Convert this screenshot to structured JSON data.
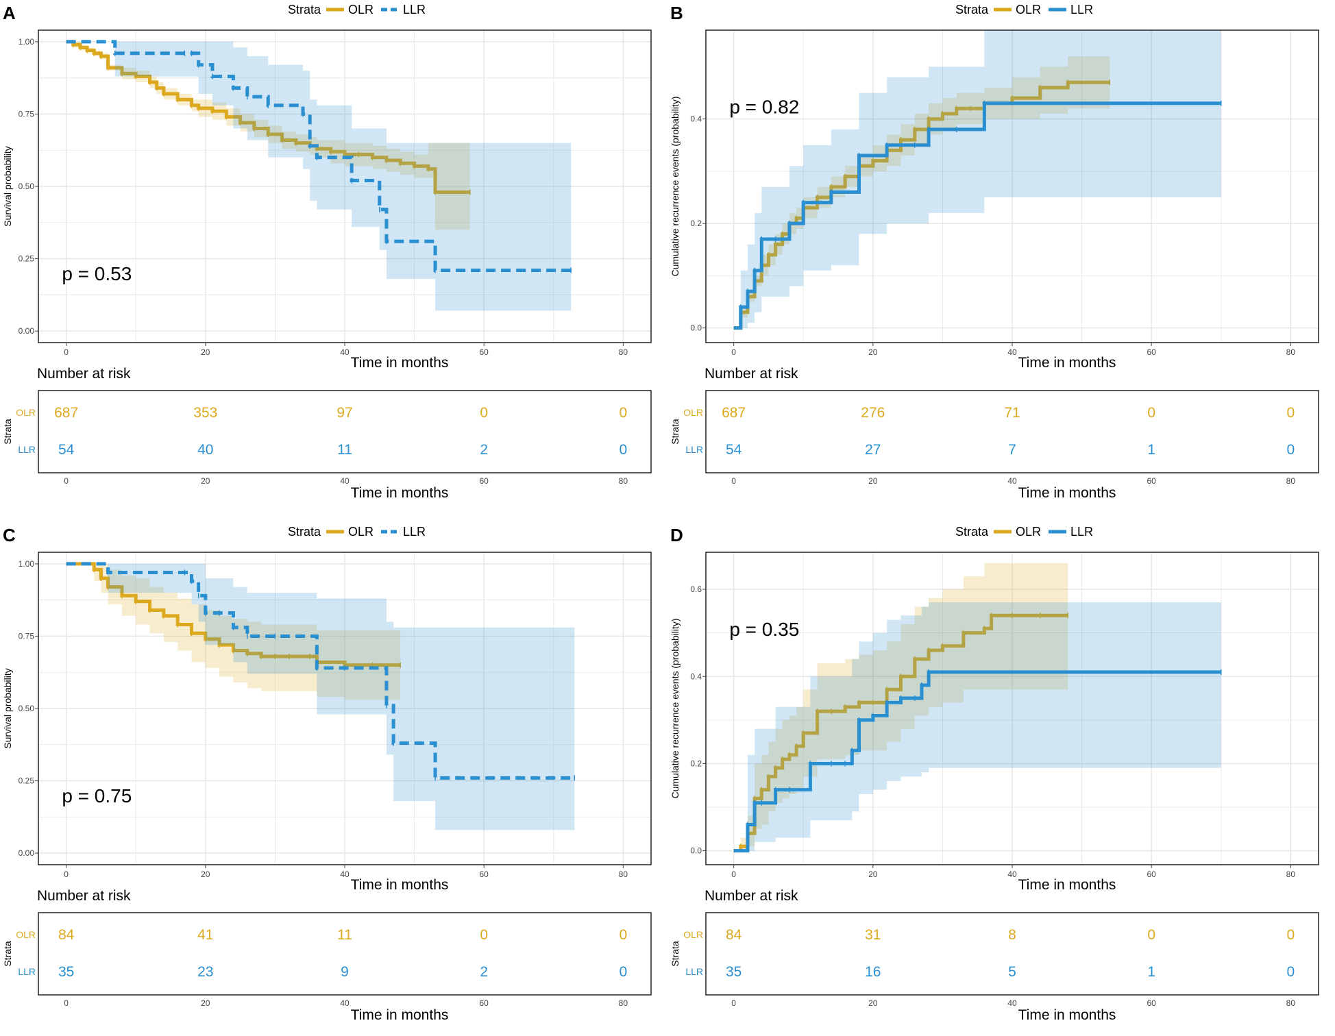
{
  "figure": {
    "legend_title": "Strata",
    "risk_table_title": "Number at risk",
    "risk_table_ylabel": "Strata",
    "colors": {
      "OLR": "#dca91e",
      "LLR": "#2a8fd0",
      "grid": "#e6e6e6",
      "text": "#000000",
      "tick": "#444444"
    }
  },
  "chart_data": [
    {
      "panel": "A",
      "type": "line",
      "kind": "survival",
      "line_style": {
        "OLR": "solid",
        "LLR": "dashed"
      },
      "ylabel": "Survival probability",
      "xlabel": "Time in months",
      "xlim": [
        -4,
        84
      ],
      "ylim": [
        -0.04,
        1.04
      ],
      "x_ticks": [
        "0",
        "20",
        "40",
        "60",
        "80"
      ],
      "y_ticks": [
        "0.00",
        "0.25",
        "0.50",
        "0.75",
        "1.00"
      ],
      "y_tick_values": [
        0,
        0.25,
        0.5,
        0.75,
        1.0
      ],
      "pvalue": "p = 0.53",
      "legend": [
        "OLR",
        "LLR"
      ],
      "series": [
        {
          "name": "OLR",
          "x": [
            0,
            1,
            2,
            3,
            4,
            5,
            6,
            8,
            10,
            12,
            13,
            14,
            16,
            18,
            19,
            21,
            23,
            25,
            27,
            29,
            31,
            33,
            35,
            36,
            38,
            40,
            42,
            44,
            46,
            48,
            50,
            52,
            53,
            58
          ],
          "values": [
            1.0,
            0.99,
            0.98,
            0.97,
            0.96,
            0.95,
            0.91,
            0.89,
            0.88,
            0.86,
            0.84,
            0.82,
            0.8,
            0.78,
            0.77,
            0.76,
            0.74,
            0.72,
            0.7,
            0.68,
            0.66,
            0.65,
            0.64,
            0.63,
            0.62,
            0.61,
            0.61,
            0.6,
            0.59,
            0.58,
            0.57,
            0.56,
            0.48,
            0.48
          ],
          "lower": [
            1.0,
            0.98,
            0.97,
            0.96,
            0.95,
            0.94,
            0.9,
            0.87,
            0.86,
            0.84,
            0.82,
            0.8,
            0.78,
            0.76,
            0.74,
            0.73,
            0.71,
            0.69,
            0.67,
            0.65,
            0.63,
            0.62,
            0.61,
            0.6,
            0.58,
            0.57,
            0.57,
            0.56,
            0.55,
            0.54,
            0.53,
            0.53,
            0.35,
            0.35
          ],
          "upper": [
            1.0,
            1.0,
            0.99,
            0.98,
            0.97,
            0.96,
            0.92,
            0.91,
            0.9,
            0.88,
            0.86,
            0.84,
            0.82,
            0.8,
            0.8,
            0.79,
            0.77,
            0.75,
            0.73,
            0.71,
            0.69,
            0.68,
            0.67,
            0.66,
            0.66,
            0.65,
            0.65,
            0.64,
            0.63,
            0.62,
            0.61,
            0.65,
            0.65,
            0.65
          ]
        },
        {
          "name": "LLR",
          "x": [
            0,
            7,
            17,
            18,
            19,
            21,
            24,
            26,
            29,
            34,
            35,
            36,
            41,
            45,
            46,
            53,
            72.5
          ],
          "values": [
            1.0,
            0.96,
            0.96,
            0.96,
            0.92,
            0.88,
            0.84,
            0.81,
            0.78,
            0.75,
            0.64,
            0.6,
            0.52,
            0.42,
            0.31,
            0.21,
            0.21
          ],
          "lower": [
            1.0,
            0.88,
            0.88,
            0.88,
            0.82,
            0.78,
            0.7,
            0.66,
            0.6,
            0.56,
            0.45,
            0.42,
            0.36,
            0.28,
            0.18,
            0.07,
            0.07
          ],
          "upper": [
            1.0,
            1.0,
            1.0,
            1.0,
            1.0,
            1.0,
            0.98,
            0.95,
            0.92,
            0.9,
            0.8,
            0.78,
            0.7,
            0.7,
            0.65,
            0.65,
            0.65
          ]
        }
      ],
      "risk_table": {
        "x": [
          "0",
          "20",
          "40",
          "60",
          "80"
        ],
        "OLR": [
          "687",
          "353",
          "97",
          "0",
          "0"
        ],
        "LLR": [
          "54",
          "40",
          "11",
          "2",
          "0"
        ]
      }
    },
    {
      "panel": "B",
      "type": "line",
      "kind": "cumulative",
      "line_style": {
        "OLR": "solid",
        "LLR": "solid"
      },
      "ylabel": "Cumulative recurrence events  (probability)",
      "xlabel": "Time in months",
      "xlim": [
        -4,
        84
      ],
      "ylim": [
        -0.028,
        0.57
      ],
      "x_ticks": [
        "0",
        "20",
        "40",
        "60",
        "80"
      ],
      "y_ticks": [
        "0.0",
        "0.2",
        "0.4"
      ],
      "y_tick_values": [
        0,
        0.2,
        0.4
      ],
      "pvalue": "p = 0.82",
      "legend": [
        "OLR",
        "LLR"
      ],
      "series": [
        {
          "name": "OLR",
          "x": [
            0,
            1,
            2,
            3,
            4,
            5,
            6,
            7,
            8,
            9,
            10,
            12,
            14,
            16,
            18,
            20,
            22,
            24,
            26,
            28,
            30,
            32,
            34,
            36,
            40,
            44,
            48,
            54
          ],
          "values": [
            0,
            0.03,
            0.06,
            0.09,
            0.12,
            0.14,
            0.16,
            0.18,
            0.2,
            0.21,
            0.23,
            0.25,
            0.27,
            0.29,
            0.31,
            0.32,
            0.34,
            0.36,
            0.38,
            0.4,
            0.41,
            0.42,
            0.42,
            0.43,
            0.44,
            0.46,
            0.47,
            0.47
          ],
          "lower": [
            0,
            0.02,
            0.05,
            0.08,
            0.1,
            0.12,
            0.14,
            0.16,
            0.18,
            0.19,
            0.21,
            0.23,
            0.25,
            0.27,
            0.29,
            0.3,
            0.31,
            0.33,
            0.35,
            0.37,
            0.38,
            0.39,
            0.39,
            0.4,
            0.4,
            0.41,
            0.42,
            0.42
          ],
          "upper": [
            0,
            0.04,
            0.07,
            0.1,
            0.14,
            0.16,
            0.18,
            0.2,
            0.22,
            0.23,
            0.25,
            0.27,
            0.29,
            0.31,
            0.33,
            0.35,
            0.37,
            0.39,
            0.41,
            0.43,
            0.44,
            0.45,
            0.45,
            0.46,
            0.48,
            0.5,
            0.52,
            0.52
          ]
        },
        {
          "name": "LLR",
          "x": [
            0,
            1,
            2,
            3,
            4,
            6,
            8,
            10,
            14,
            18,
            22,
            26,
            28,
            32,
            36,
            70
          ],
          "values": [
            0,
            0.04,
            0.07,
            0.11,
            0.17,
            0.17,
            0.2,
            0.24,
            0.26,
            0.33,
            0.35,
            0.35,
            0.38,
            0.38,
            0.43,
            0.43
          ],
          "lower": [
            0,
            0.0,
            0.01,
            0.03,
            0.06,
            0.06,
            0.08,
            0.11,
            0.12,
            0.18,
            0.2,
            0.2,
            0.22,
            0.22,
            0.25,
            0.25
          ],
          "upper": [
            0,
            0.11,
            0.16,
            0.22,
            0.27,
            0.27,
            0.31,
            0.35,
            0.38,
            0.45,
            0.48,
            0.48,
            0.5,
            0.5,
            0.57,
            0.57
          ]
        }
      ],
      "risk_table": {
        "x": [
          "0",
          "20",
          "40",
          "60",
          "80"
        ],
        "OLR": [
          "687",
          "276",
          "71",
          "0",
          "0"
        ],
        "LLR": [
          "54",
          "27",
          "7",
          "1",
          "0"
        ]
      }
    },
    {
      "panel": "C",
      "type": "line",
      "kind": "survival",
      "line_style": {
        "OLR": "solid",
        "LLR": "dashed"
      },
      "ylabel": "Survival probability",
      "xlabel": "Time in months",
      "xlim": [
        -4,
        84
      ],
      "ylim": [
        -0.04,
        1.04
      ],
      "x_ticks": [
        "0",
        "20",
        "40",
        "60",
        "80"
      ],
      "y_ticks": [
        "0.00",
        "0.25",
        "0.50",
        "0.75",
        "1.00"
      ],
      "y_tick_values": [
        0,
        0.25,
        0.5,
        0.75,
        1.0
      ],
      "pvalue": "p = 0.75",
      "legend": [
        "OLR",
        "LLR"
      ],
      "series": [
        {
          "name": "OLR",
          "x": [
            0,
            4,
            5,
            6,
            8,
            10,
            12,
            14,
            16,
            18,
            20,
            22,
            24,
            26,
            28,
            30,
            32,
            35,
            36,
            40,
            44,
            48
          ],
          "values": [
            1.0,
            0.98,
            0.95,
            0.92,
            0.89,
            0.87,
            0.84,
            0.82,
            0.79,
            0.76,
            0.74,
            0.72,
            0.7,
            0.69,
            0.68,
            0.68,
            0.68,
            0.68,
            0.66,
            0.65,
            0.65,
            0.65
          ],
          "lower": [
            1.0,
            0.94,
            0.9,
            0.86,
            0.82,
            0.79,
            0.76,
            0.73,
            0.7,
            0.66,
            0.64,
            0.61,
            0.59,
            0.57,
            0.56,
            0.56,
            0.56,
            0.56,
            0.54,
            0.53,
            0.53,
            0.53
          ],
          "upper": [
            1.0,
            1.0,
            1.0,
            0.98,
            0.96,
            0.95,
            0.92,
            0.9,
            0.88,
            0.86,
            0.84,
            0.82,
            0.81,
            0.8,
            0.79,
            0.79,
            0.79,
            0.79,
            0.77,
            0.77,
            0.77,
            0.77
          ]
        },
        {
          "name": "LLR",
          "x": [
            0,
            6,
            17,
            18,
            19,
            20,
            22,
            24,
            26,
            30,
            36,
            40,
            46,
            47,
            53,
            73
          ],
          "values": [
            1.0,
            0.97,
            0.97,
            0.94,
            0.89,
            0.83,
            0.83,
            0.78,
            0.75,
            0.75,
            0.64,
            0.64,
            0.51,
            0.38,
            0.26,
            0.26
          ],
          "lower": [
            1.0,
            0.9,
            0.9,
            0.86,
            0.8,
            0.72,
            0.72,
            0.66,
            0.62,
            0.62,
            0.48,
            0.48,
            0.34,
            0.18,
            0.08,
            0.08
          ],
          "upper": [
            1.0,
            1.0,
            1.0,
            1.0,
            1.0,
            0.95,
            0.95,
            0.92,
            0.9,
            0.9,
            0.88,
            0.88,
            0.8,
            0.78,
            0.78,
            0.78
          ]
        }
      ],
      "risk_table": {
        "x": [
          "0",
          "20",
          "40",
          "60",
          "80"
        ],
        "OLR": [
          "84",
          "41",
          "11",
          "0",
          "0"
        ],
        "LLR": [
          "35",
          "23",
          "9",
          "2",
          "0"
        ]
      }
    },
    {
      "panel": "D",
      "type": "line",
      "kind": "cumulative",
      "line_style": {
        "OLR": "solid",
        "LLR": "solid"
      },
      "ylabel": "Cumulative recurrence events  (probability)",
      "xlabel": "Time in months",
      "xlim": [
        -4,
        84
      ],
      "ylim": [
        -0.032,
        0.685
      ],
      "x_ticks": [
        "0",
        "20",
        "40",
        "60",
        "80"
      ],
      "y_ticks": [
        "0.0",
        "0.2",
        "0.4",
        "0.6"
      ],
      "y_tick_values": [
        0,
        0.2,
        0.4,
        0.6
      ],
      "pvalue": "p = 0.35",
      "legend": [
        "OLR",
        "LLR"
      ],
      "series": [
        {
          "name": "OLR",
          "x": [
            0,
            1,
            2,
            3,
            4,
            5,
            6,
            7,
            8,
            9,
            10,
            12,
            14,
            16,
            18,
            20,
            22,
            24,
            26,
            28,
            30,
            33,
            36,
            37,
            40,
            44,
            48
          ],
          "values": [
            0,
            0.01,
            0.04,
            0.12,
            0.14,
            0.17,
            0.19,
            0.21,
            0.22,
            0.24,
            0.27,
            0.32,
            0.32,
            0.33,
            0.34,
            0.34,
            0.37,
            0.4,
            0.44,
            0.46,
            0.47,
            0.5,
            0.51,
            0.54,
            0.54,
            0.54,
            0.54
          ],
          "lower": [
            0,
            0.0,
            0.01,
            0.05,
            0.06,
            0.09,
            0.11,
            0.12,
            0.13,
            0.14,
            0.17,
            0.21,
            0.21,
            0.22,
            0.23,
            0.23,
            0.25,
            0.28,
            0.31,
            0.33,
            0.34,
            0.37,
            0.37,
            0.37,
            0.37,
            0.37,
            0.37
          ],
          "upper": [
            0,
            0.03,
            0.08,
            0.2,
            0.22,
            0.25,
            0.28,
            0.3,
            0.31,
            0.33,
            0.37,
            0.43,
            0.43,
            0.44,
            0.45,
            0.46,
            0.48,
            0.52,
            0.56,
            0.58,
            0.6,
            0.63,
            0.66,
            0.66,
            0.66,
            0.66,
            0.66
          ]
        },
        {
          "name": "LLR",
          "x": [
            0,
            2,
            3,
            4,
            6,
            8,
            11,
            14,
            16,
            17,
            18,
            20,
            22,
            24,
            26,
            27,
            28,
            70
          ],
          "values": [
            0,
            0.06,
            0.11,
            0.11,
            0.14,
            0.14,
            0.2,
            0.2,
            0.2,
            0.23,
            0.3,
            0.31,
            0.34,
            0.35,
            0.35,
            0.38,
            0.41,
            0.41
          ],
          "lower": [
            0,
            0.0,
            0.02,
            0.02,
            0.03,
            0.03,
            0.07,
            0.07,
            0.07,
            0.09,
            0.13,
            0.14,
            0.16,
            0.17,
            0.17,
            0.18,
            0.19,
            0.19
          ],
          "upper": [
            0,
            0.22,
            0.28,
            0.28,
            0.33,
            0.33,
            0.4,
            0.4,
            0.4,
            0.44,
            0.48,
            0.5,
            0.53,
            0.54,
            0.54,
            0.56,
            0.57,
            0.57
          ]
        }
      ],
      "risk_table": {
        "x": [
          "0",
          "20",
          "40",
          "60",
          "80"
        ],
        "OLR": [
          "84",
          "31",
          "8",
          "0",
          "0"
        ],
        "LLR": [
          "35",
          "16",
          "5",
          "1",
          "0"
        ]
      }
    }
  ]
}
